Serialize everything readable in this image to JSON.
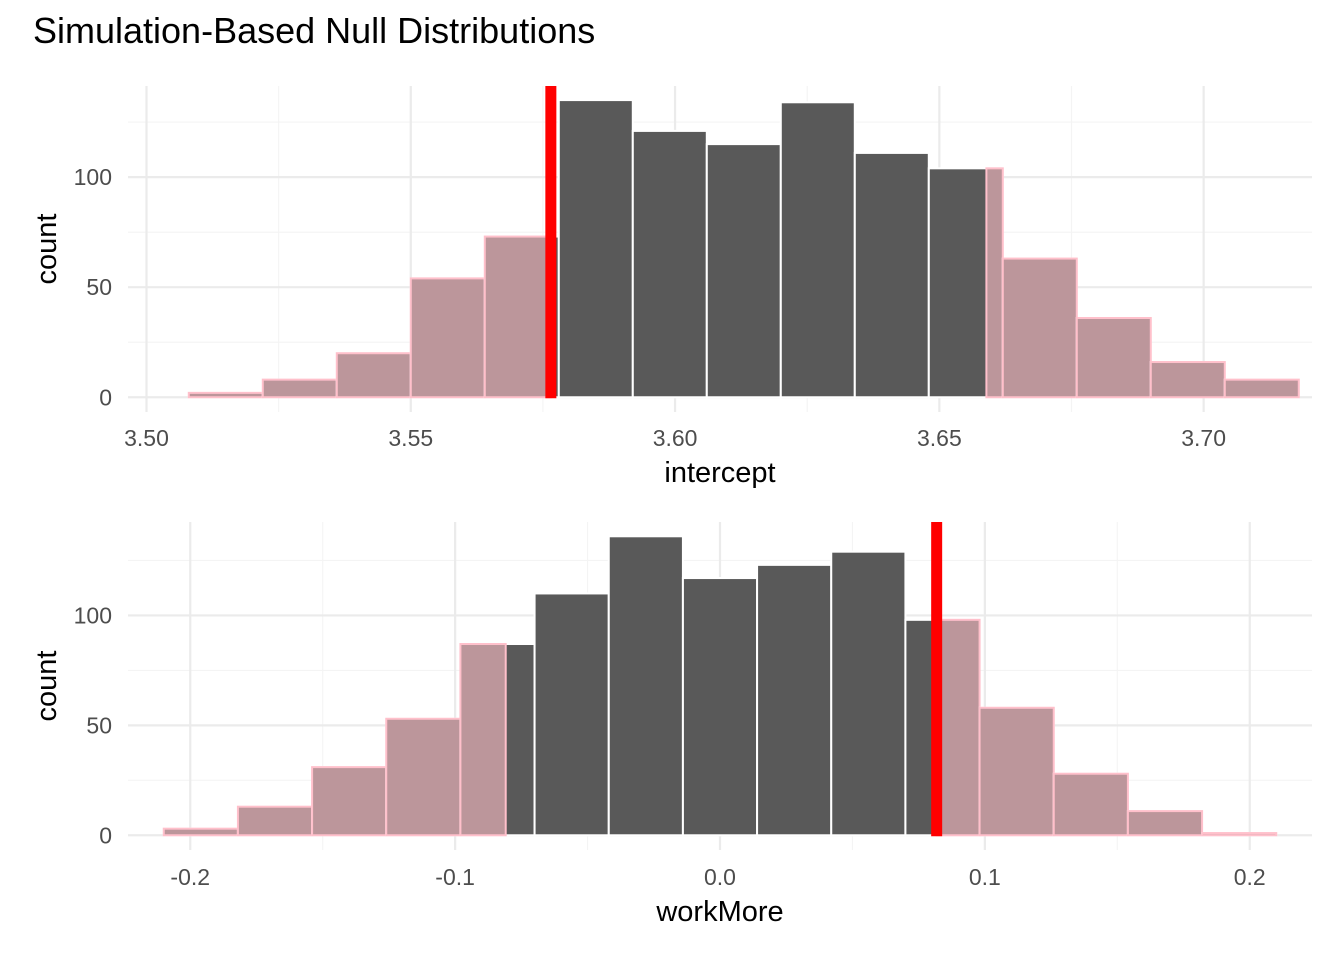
{
  "title": "Simulation-Based Null Distributions",
  "colors": {
    "dark_fill": "#595959",
    "shade_fill": "#bc969b",
    "bar_outline_dark": "#ffffff",
    "bar_outline_shade": "#ffc0cb",
    "observed_line": "#ff0000",
    "grid_major": "#ebebeb",
    "grid_minor": "#f4f4f4",
    "tick_text": "#4d4d4d"
  },
  "chart_data": [
    {
      "type": "histogram",
      "title": "",
      "xlabel": "intercept",
      "ylabel": "count",
      "x_ticks": [
        "3.50",
        "3.55",
        "3.60",
        "3.65",
        "3.70"
      ],
      "x_tick_values": [
        3.5,
        3.55,
        3.6,
        3.65,
        3.7
      ],
      "y_ticks": [
        "0",
        "50",
        "100"
      ],
      "y_tick_values": [
        0,
        50,
        100
      ],
      "xlim": [
        3.4965,
        3.7205
      ],
      "ylim": [
        -6.7,
        141.4
      ],
      "bin_width": 0.014,
      "bins": [
        {
          "center": 3.515,
          "count": 2
        },
        {
          "center": 3.529,
          "count": 8
        },
        {
          "center": 3.543,
          "count": 20
        },
        {
          "center": 3.557,
          "count": 54
        },
        {
          "center": 3.571,
          "count": 73
        },
        {
          "center": 3.585,
          "count": 135
        },
        {
          "center": 3.599,
          "count": 121
        },
        {
          "center": 3.613,
          "count": 115
        },
        {
          "center": 3.627,
          "count": 134
        },
        {
          "center": 3.641,
          "count": 111
        },
        {
          "center": 3.655,
          "count": 104
        },
        {
          "center": 3.669,
          "count": 63
        },
        {
          "center": 3.683,
          "count": 36
        },
        {
          "center": 3.697,
          "count": 16
        },
        {
          "center": 3.711,
          "count": 8
        }
      ],
      "shade_outside": [
        3.5765,
        3.6589
      ],
      "observed_value": 3.5765
    },
    {
      "type": "histogram",
      "title": "",
      "xlabel": "workMore",
      "ylabel": "count",
      "x_ticks": [
        "-0.2",
        "-0.1",
        "0.0",
        "0.1",
        "0.2"
      ],
      "x_tick_values": [
        -0.2,
        -0.1,
        0.0,
        0.1,
        0.2
      ],
      "y_ticks": [
        "0",
        "50",
        "100"
      ],
      "y_tick_values": [
        0,
        50,
        100
      ],
      "xlim": [
        -0.2235,
        0.2235
      ],
      "ylim": [
        -6.7,
        142.5
      ],
      "bin_width": 0.028,
      "bins": [
        {
          "center": -0.196,
          "count": 3
        },
        {
          "center": -0.168,
          "count": 13
        },
        {
          "center": -0.14,
          "count": 31
        },
        {
          "center": -0.112,
          "count": 53
        },
        {
          "center": -0.084,
          "count": 87
        },
        {
          "center": -0.056,
          "count": 110
        },
        {
          "center": -0.028,
          "count": 136
        },
        {
          "center": 0.0,
          "count": 117
        },
        {
          "center": 0.028,
          "count": 123
        },
        {
          "center": 0.056,
          "count": 129
        },
        {
          "center": 0.084,
          "count": 98
        },
        {
          "center": 0.112,
          "count": 58
        },
        {
          "center": 0.14,
          "count": 28
        },
        {
          "center": 0.168,
          "count": 11
        },
        {
          "center": 0.196,
          "count": 1
        }
      ],
      "shade_outside": [
        -0.0809,
        0.0818
      ],
      "observed_value": 0.0818
    }
  ]
}
